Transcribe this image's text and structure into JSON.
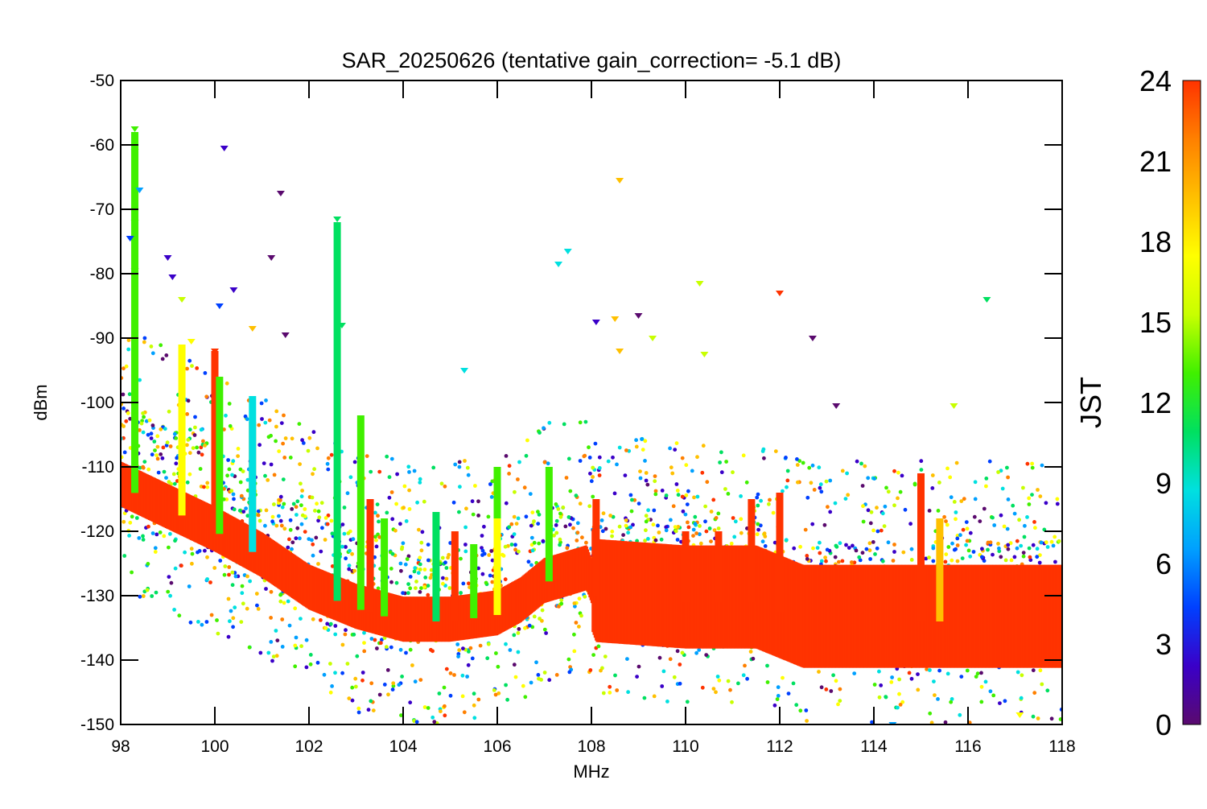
{
  "chart_data": {
    "type": "scatter",
    "title": "SAR_20250626 (tentative gain_correction= -5.1 dB)",
    "xlabel": "MHz",
    "ylabel": "dBm",
    "xlim": [
      98,
      118
    ],
    "ylim": [
      -150,
      -50
    ],
    "x_ticks": [
      98,
      100,
      102,
      104,
      106,
      108,
      110,
      112,
      114,
      116,
      118
    ],
    "y_ticks": [
      -50,
      -60,
      -70,
      -80,
      -90,
      -100,
      -110,
      -120,
      -130,
      -140,
      -150
    ],
    "color_scale": {
      "label": "JST",
      "range": [
        0,
        24
      ],
      "ticks": [
        0,
        3,
        6,
        9,
        12,
        15,
        18,
        21,
        24
      ],
      "colors": [
        "#5a0a6e",
        "#3a00c8",
        "#0040ff",
        "#00a0ff",
        "#00e0e0",
        "#00e060",
        "#40f000",
        "#c8ff00",
        "#ffff00",
        "#ffc000",
        "#ff8000",
        "#ff3300"
      ]
    },
    "noise_floor": [
      {
        "x": 98.0,
        "y": -113
      },
      {
        "x": 100.0,
        "y": -120
      },
      {
        "x": 101.0,
        "y": -124
      },
      {
        "x": 102.0,
        "y": -129
      },
      {
        "x": 103.0,
        "y": -132
      },
      {
        "x": 104.0,
        "y": -134
      },
      {
        "x": 105.0,
        "y": -134
      },
      {
        "x": 106.0,
        "y": -133
      },
      {
        "x": 106.5,
        "y": -131
      },
      {
        "x": 107.0,
        "y": -128
      },
      {
        "x": 107.9,
        "y": -126
      },
      {
        "x": 108.1,
        "y": -130
      },
      {
        "x": 110.0,
        "y": -131
      },
      {
        "x": 111.5,
        "y": -131
      },
      {
        "x": 112.5,
        "y": -134
      },
      {
        "x": 114.0,
        "y": -134
      },
      {
        "x": 116.0,
        "y": -134
      },
      {
        "x": 118.0,
        "y": -134
      }
    ],
    "strong_signals": [
      {
        "x": 98.3,
        "y": -57.5,
        "jst": 12
      },
      {
        "x": 98.3,
        "y": -61,
        "jst": 12
      },
      {
        "x": 98.3,
        "y": -72,
        "jst": 12
      },
      {
        "x": 98.3,
        "y": -79.5,
        "jst": 13
      },
      {
        "x": 98.4,
        "y": -67,
        "jst": 7
      },
      {
        "x": 98.2,
        "y": -74.5,
        "jst": 4
      },
      {
        "x": 99.0,
        "y": -77.5,
        "jst": 3
      },
      {
        "x": 99.1,
        "y": -80.5,
        "jst": 3
      },
      {
        "x": 99.3,
        "y": -84,
        "jst": 16
      },
      {
        "x": 99.5,
        "y": -90.5,
        "jst": 18
      },
      {
        "x": 100.0,
        "y": -92,
        "jst": 23
      },
      {
        "x": 100.1,
        "y": -85,
        "jst": 4
      },
      {
        "x": 100.2,
        "y": -60.5,
        "jst": 3
      },
      {
        "x": 100.4,
        "y": -82.5,
        "jst": 3
      },
      {
        "x": 100.8,
        "y": -88.5,
        "jst": 19
      },
      {
        "x": 101.2,
        "y": -77.5,
        "jst": 1
      },
      {
        "x": 101.4,
        "y": -67.5,
        "jst": 1
      },
      {
        "x": 101.5,
        "y": -89.5,
        "jst": 1
      },
      {
        "x": 102.6,
        "y": -71.5,
        "jst": 10
      },
      {
        "x": 102.7,
        "y": -88,
        "jst": 11
      },
      {
        "x": 105.3,
        "y": -95,
        "jst": 8
      },
      {
        "x": 107.3,
        "y": -78.5,
        "jst": 9
      },
      {
        "x": 107.5,
        "y": -76.5,
        "jst": 8
      },
      {
        "x": 108.1,
        "y": -87.5,
        "jst": 3
      },
      {
        "x": 108.5,
        "y": -87,
        "jst": 20
      },
      {
        "x": 108.6,
        "y": -65.5,
        "jst": 20
      },
      {
        "x": 108.6,
        "y": -92,
        "jst": 20
      },
      {
        "x": 109.0,
        "y": -86.5,
        "jst": 1
      },
      {
        "x": 109.3,
        "y": -90,
        "jst": 15
      },
      {
        "x": 110.3,
        "y": -81.5,
        "jst": 16
      },
      {
        "x": 110.4,
        "y": -92.5,
        "jst": 15
      },
      {
        "x": 112.0,
        "y": -83,
        "jst": 23
      },
      {
        "x": 112.7,
        "y": -90,
        "jst": 1
      },
      {
        "x": 113.2,
        "y": -100.5,
        "jst": 1
      },
      {
        "x": 115.7,
        "y": -100.5,
        "jst": 15
      },
      {
        "x": 116.4,
        "y": -84,
        "jst": 11
      },
      {
        "x": 117.1,
        "y": -148.5,
        "jst": 18
      },
      {
        "x": 114.4,
        "y": -150,
        "jst": 7
      }
    ],
    "spikes": [
      {
        "x": 98.3,
        "top": -58,
        "jst": 13
      },
      {
        "x": 99.3,
        "top": -91,
        "jst": 18
      },
      {
        "x": 100.0,
        "top": -92,
        "jst": 23
      },
      {
        "x": 100.1,
        "top": -96,
        "jst": 14
      },
      {
        "x": 100.8,
        "top": -103,
        "jst": 21
      },
      {
        "x": 100.8,
        "top": -99,
        "jst": 9
      },
      {
        "x": 102.6,
        "top": -72,
        "jst": 11
      },
      {
        "x": 103.1,
        "top": -102,
        "jst": 13
      },
      {
        "x": 103.3,
        "top": -115,
        "jst": 23
      },
      {
        "x": 103.6,
        "top": -118,
        "jst": 13
      },
      {
        "x": 104.7,
        "top": -117,
        "jst": 10
      },
      {
        "x": 105.1,
        "top": -120,
        "jst": 23
      },
      {
        "x": 105.5,
        "top": -122,
        "jst": 14
      },
      {
        "x": 106.0,
        "top": -110,
        "jst": 14
      },
      {
        "x": 106.0,
        "top": -118,
        "jst": 17
      },
      {
        "x": 107.1,
        "top": -110,
        "jst": 14
      },
      {
        "x": 108.1,
        "top": -115,
        "jst": 23
      },
      {
        "x": 110.0,
        "top": -120,
        "jst": 23
      },
      {
        "x": 110.7,
        "top": -120,
        "jst": 23
      },
      {
        "x": 111.4,
        "top": -115,
        "jst": 23
      },
      {
        "x": 112.0,
        "top": -114,
        "jst": 23
      },
      {
        "x": 115.0,
        "top": -111,
        "jst": 23
      },
      {
        "x": 115.4,
        "top": -118,
        "jst": 20
      }
    ]
  }
}
